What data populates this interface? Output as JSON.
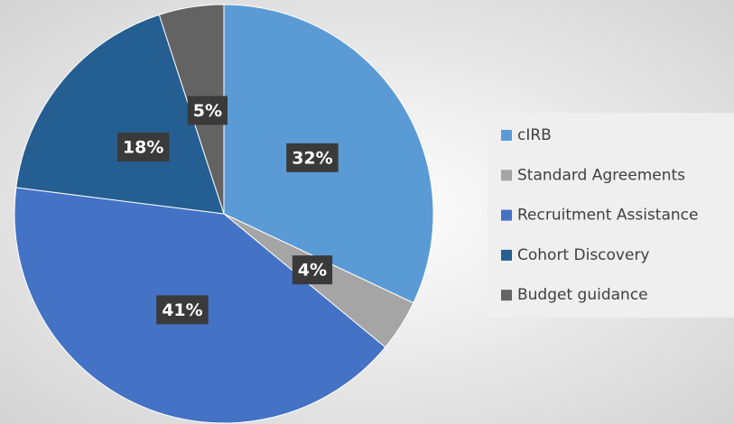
{
  "chart_data": {
    "type": "pie",
    "categories": [
      "cIRB",
      "Standard Agreements",
      "Recruitment Assistance",
      "Cohort Discovery",
      "Budget guidance"
    ],
    "values": [
      32,
      4,
      41,
      18,
      5
    ],
    "value_labels": [
      "32%",
      "4%",
      "41%",
      "18%",
      "5%"
    ],
    "colors": [
      "#5b9bd5",
      "#a5a5a5",
      "#4472c4",
      "#255e91",
      "#636363"
    ],
    "legend": "right"
  }
}
